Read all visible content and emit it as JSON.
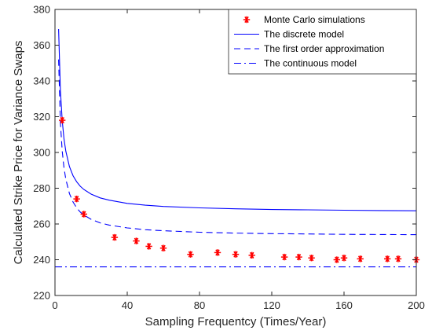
{
  "chart_data": {
    "type": "line",
    "title": "",
    "xlabel": "Sampling Frequentcy (Times/Year)",
    "ylabel": "Calculated Strike Price for Variance Swaps",
    "xlim": [
      0,
      200
    ],
    "ylim": [
      220,
      380
    ],
    "x_ticks": [
      0,
      40,
      80,
      120,
      160,
      200
    ],
    "y_ticks": [
      220,
      240,
      260,
      280,
      300,
      320,
      340,
      360,
      380
    ],
    "grid": false,
    "legend_position": "top-right",
    "series": [
      {
        "name": "Monte Carlo simulations",
        "kind": "scatter",
        "marker": "asterisk",
        "color": "#ff0000",
        "x": [
          4,
          12,
          16,
          33,
          45,
          52,
          60,
          75,
          90,
          100,
          109,
          127,
          135,
          142,
          156,
          160,
          169,
          184,
          190,
          200
        ],
        "y": [
          318,
          274,
          265.5,
          252.5,
          250.5,
          247.5,
          246.5,
          243,
          244,
          243,
          242.5,
          241.5,
          241.5,
          241,
          240,
          241,
          240.5,
          240.5,
          240.5,
          240
        ]
      },
      {
        "name": "The discrete model",
        "kind": "line",
        "style": "solid",
        "color": "#0000ff",
        "x": [
          2,
          3,
          4,
          5,
          6,
          8,
          10,
          12,
          14,
          16,
          20,
          25,
          30,
          40,
          50,
          60,
          80,
          100,
          120,
          140,
          160,
          180,
          200
        ],
        "y": [
          369,
          334.8,
          317.8,
          307.5,
          300.7,
          292.1,
          287.0,
          283.6,
          281.1,
          279.3,
          276.7,
          274.6,
          273.3,
          271.5,
          270.5,
          269.8,
          269.0,
          268.5,
          268.1,
          267.9,
          267.7,
          267.5,
          267.4
        ]
      },
      {
        "name": "The first order approximation",
        "kind": "line",
        "style": "dashed",
        "color": "#0000ff",
        "x": [
          2,
          3,
          4,
          5,
          6,
          8,
          10,
          12,
          14,
          16,
          20,
          25,
          30,
          40,
          50,
          60,
          80,
          100,
          120,
          140,
          160,
          180,
          200
        ],
        "y": [
          352,
          316.5,
          300.8,
          291.3,
          285.0,
          277.0,
          272.3,
          269.0,
          266.7,
          265.0,
          262.6,
          260.6,
          259.4,
          257.8,
          256.8,
          256.2,
          255.4,
          254.9,
          254.6,
          254.4,
          254.2,
          254.1,
          254.0
        ]
      },
      {
        "name": "The continuous model",
        "kind": "line",
        "style": "dashdot",
        "color": "#0000ff",
        "x": [
          0,
          200
        ],
        "y": [
          236,
          236
        ]
      }
    ]
  }
}
